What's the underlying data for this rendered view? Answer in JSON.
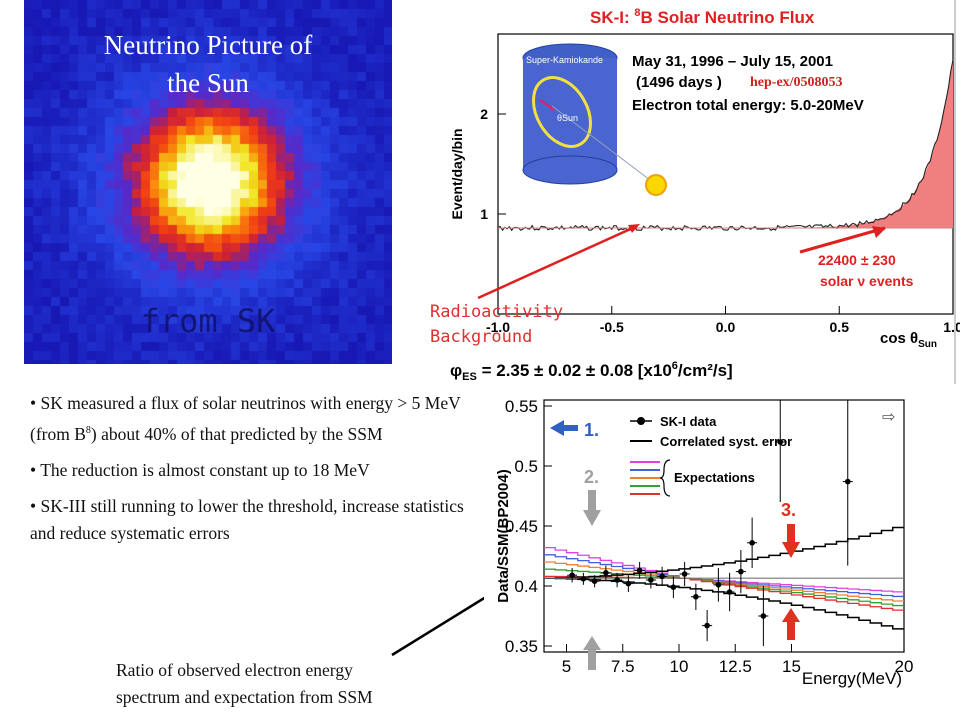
{
  "sun_image": {
    "title_line1": "Neutrino Picture of",
    "title_line2": "the Sun",
    "watermark": "from SK"
  },
  "radioactivity_label": {
    "line1": "Radioactivity",
    "line2": "Background",
    "color": "#e03030"
  },
  "bullets": [
    {
      "pre": "SK measured a flux of solar neutrinos with energy > 5 MeV (from B",
      "sup": "8",
      "post": ") about 40% of that predicted by the SSM"
    },
    {
      "text": "The reduction is almost constant up to 18 MeV"
    },
    {
      "text": "SK-III still running to lower the threshold, increase statistics and reduce systematic errors"
    }
  ],
  "ratio_caption": {
    "line1": "Ratio of observed electron energy",
    "line2": "spectrum and expectation from SSM"
  },
  "chart_data": [
    {
      "type": "line",
      "title": "SK-I: 8B Solar Neutrino Flux",
      "title_parts": {
        "prefix": "SK-I: ",
        "sup": "8",
        "suffix": "B Solar Neutrino Flux"
      },
      "xlabel": "cos θSun",
      "xlabel_parts": {
        "main": "cos θ",
        "sub": "Sun"
      },
      "ylabel": "Event/day/bin",
      "xlim": [
        -1.0,
        1.0
      ],
      "ylim": [
        0,
        2.8
      ],
      "xticks": [
        "-1.0",
        "-0.5",
        "0.0",
        "0.5",
        "1.0"
      ],
      "yticks": [
        "1",
        "2"
      ],
      "info_lines": [
        "May 31, 1996 – July 15, 2001",
        "(1496 days )",
        "Electron total energy: 5.0-20MeV"
      ],
      "reference": "hep-ex/0508053",
      "detector_label": "Super-Kamiokande",
      "detector_angle_label": "θSun",
      "events_lines": [
        "22400 ± 230",
        "solar ν events"
      ],
      "flux_formula": {
        "symbol": "φ",
        "sub": "ES",
        "text": " = 2.35 ± 0.02 ± 0.08  [x10",
        "exp": "6",
        "unit": "/cm²/s]"
      },
      "background_level": 0.86,
      "signal_peak": 2.55,
      "fill_color": "#f08080",
      "accent_color": "#e02020"
    },
    {
      "type": "scatter",
      "xlabel": "Energy(MeV)",
      "ylabel": "Data/SSM(BP2004)",
      "xlim": [
        4,
        20
      ],
      "ylim": [
        0.345,
        0.555
      ],
      "xticks": [
        "5",
        "7.5",
        "10",
        "12.5",
        "15",
        "20"
      ],
      "yticks": [
        "0.35",
        "0.4",
        "0.45",
        "0.5",
        "0.55"
      ],
      "legend": [
        "SK-I data",
        "Correlated syst. error",
        "Expectations"
      ],
      "markers": [
        "1.",
        "2.",
        "3."
      ],
      "marker_colors": {
        "blue": "#3060c0",
        "gray": "#a0a0a0",
        "red": "#e03020"
      },
      "expectation_colors": [
        "#e040e0",
        "#4060e0",
        "#f08030",
        "#30a030",
        "#e03030"
      ],
      "points": [
        {
          "x": 5.25,
          "y": 0.409,
          "err": 0.006
        },
        {
          "x": 5.75,
          "y": 0.406,
          "err": 0.005
        },
        {
          "x": 6.25,
          "y": 0.404,
          "err": 0.005
        },
        {
          "x": 6.75,
          "y": 0.411,
          "err": 0.006
        },
        {
          "x": 7.25,
          "y": 0.405,
          "err": 0.006
        },
        {
          "x": 7.75,
          "y": 0.402,
          "err": 0.007
        },
        {
          "x": 8.25,
          "y": 0.413,
          "err": 0.007
        },
        {
          "x": 8.75,
          "y": 0.405,
          "err": 0.007
        },
        {
          "x": 9.25,
          "y": 0.408,
          "err": 0.008
        },
        {
          "x": 9.75,
          "y": 0.399,
          "err": 0.009
        },
        {
          "x": 10.25,
          "y": 0.41,
          "err": 0.01
        },
        {
          "x": 10.75,
          "y": 0.391,
          "err": 0.011
        },
        {
          "x": 11.25,
          "y": 0.367,
          "err": 0.013
        },
        {
          "x": 11.75,
          "y": 0.401,
          "err": 0.014
        },
        {
          "x": 12.25,
          "y": 0.395,
          "err": 0.016
        },
        {
          "x": 12.75,
          "y": 0.412,
          "err": 0.018
        },
        {
          "x": 13.25,
          "y": 0.436,
          "err": 0.021
        },
        {
          "x": 13.75,
          "y": 0.375,
          "err": 0.025
        },
        {
          "x": 14.5,
          "y": 0.52,
          "err": 0.05
        },
        {
          "x": 17.5,
          "y": 0.487,
          "err": 0.07
        }
      ]
    }
  ]
}
